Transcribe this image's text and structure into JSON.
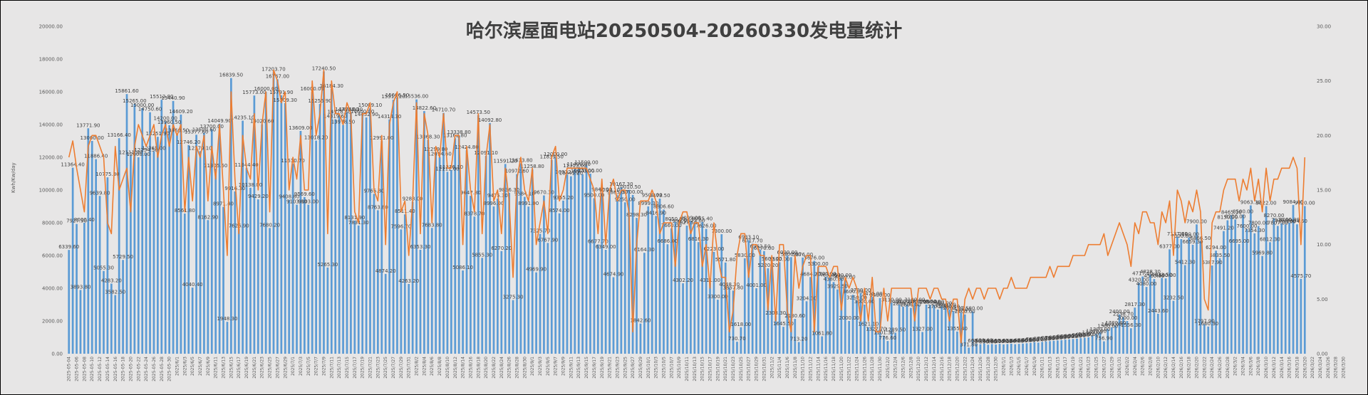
{
  "chart_data": {
    "type": "bar",
    "title": "哈尔滨屋面电站20250504-20260330发电量统计",
    "ylabel": "Kwh/Kw/day",
    "ylim": [
      0,
      20000
    ],
    "y2lim": [
      0,
      30
    ],
    "yticks": [
      "0.00",
      "2000.00",
      "4000.00",
      "6000.00",
      "8000.00",
      "10000.00",
      "12000.00",
      "14000.00",
      "16000.00",
      "18000.00",
      "20000.00"
    ],
    "y2ticks": [
      "0.00",
      "5.00",
      "10.00",
      "15.00",
      "20.00",
      "25.00",
      "30.00"
    ],
    "date_start": "2025-05-04",
    "date_end": "2026-03-30",
    "x_tick_labels": [
      "2025-05-04",
      "2025-05-06",
      "2025-05-08",
      "2025-05-10",
      "2025-05-12",
      "2025-05-14",
      "2025-05-16",
      "2025-05-18",
      "2025-05-20",
      "2025-05-22",
      "2025-05-24",
      "2025-05-26",
      "2025-05-28",
      "2025-05-30",
      "2025/6/1",
      "2025/6/3",
      "2025/6/5",
      "2025/6/7",
      "2025/6/9",
      "2025/6/11",
      "2025/6/13",
      "2025/6/15",
      "2025/6/17",
      "2025/6/19",
      "2025/6/21",
      "2025/6/23",
      "2025/6/25",
      "2025/6/27",
      "2025/6/29",
      "2025/7/1",
      "2025/7/3",
      "2025/7/5",
      "2025/7/7",
      "2025/7/9",
      "2025/7/11",
      "2025/7/13",
      "2025/7/15",
      "2025/7/17",
      "2025/7/19",
      "2025/7/21",
      "2025/7/23",
      "2025/7/25",
      "2025/7/27",
      "2025/7/29",
      "2025/7/31",
      "2025/8/2",
      "2025/8/4",
      "2025/8/6",
      "2025/8/8",
      "2025/8/10",
      "2025/8/12",
      "2025/8/14",
      "2025/8/16",
      "2025/8/18",
      "2025/8/20",
      "2025/8/22",
      "2025/8/24",
      "2025/8/26",
      "2025/8/28",
      "2025/8/30",
      "2025/9/1",
      "2025/9/3",
      "2025/9/5",
      "2025/9/7",
      "2025/9/9",
      "2025/9/11",
      "2025/9/13",
      "2025/9/15",
      "2025/9/17",
      "2025/9/19",
      "2025/9/21",
      "2025/9/23",
      "2025/9/25",
      "2025/9/27",
      "2025/9/29",
      "2025/10/1",
      "2025/10/3",
      "2025/10/5",
      "2025/10/7",
      "2025/10/9",
      "2025/10/11",
      "2025/10/13",
      "2025/10/15",
      "2025/10/17",
      "2025/10/19",
      "2025/10/21",
      "2025/10/23",
      "2025/10/25",
      "2025/10/27",
      "2025/10/29",
      "2025/10/31",
      "2025/11/2",
      "2025/11/4",
      "2025/11/6",
      "2025/11/8",
      "2025/11/10",
      "2025/11/12",
      "2025/11/14",
      "2025/11/16",
      "2025/11/18",
      "2025/11/20",
      "2025/11/22",
      "2025/11/24",
      "2025/11/26",
      "2025/11/28",
      "2025/11/30",
      "2025/12/2",
      "2025/12/4",
      "2025/12/6",
      "2025/12/8",
      "2025/12/10",
      "2025/12/12",
      "2025/12/14",
      "2025/12/16",
      "2025/12/18",
      "2025/12/20",
      "2025/12/22",
      "2025/12/24",
      "2025/12/26",
      "2025/12/28",
      "2025/12/30",
      "2026/1/1",
      "2026/1/3",
      "2026/1/5",
      "2026/1/7",
      "2026/1/9",
      "2026/1/11",
      "2026/1/13",
      "2026/1/15",
      "2026/1/17",
      "2026/1/19",
      "2026/1/21",
      "2026/1/23",
      "2026/1/25",
      "2026/1/27",
      "2026/1/29",
      "2026/1/31",
      "2026/2/2",
      "2026/2/4",
      "2026/2/6",
      "2026/2/8",
      "2026/2/10",
      "2026/2/12",
      "2026/2/14",
      "2026/2/16",
      "2026/2/18",
      "2026/2/20",
      "2026/2/22",
      "2026/2/24",
      "2026/2/26",
      "2026/2/28",
      "2026/3/2",
      "2026/3/4",
      "2026/3/6",
      "2026/3/8",
      "2026/3/10",
      "2026/3/12",
      "2026/3/14",
      "2026/3/16",
      "2026/3/18",
      "2026/3/20",
      "2026/3/22",
      "2026/3/24",
      "2026/3/26",
      "2026/3/28",
      "2026/3/30"
    ],
    "bar_color": "#5b9bd5",
    "line_color": "#ed7d31",
    "series": [
      {
        "type": "bar",
        "axis": "left",
        "values": [
          6339.6,
          11364.4,
          7927.9,
          3893.8,
          8000.4,
          13771.9,
          13000.0,
          11886.4,
          9639.8,
          5055.3,
          10775.3,
          4283.2,
          3582.5,
          13166.4,
          5729.5,
          15861.6,
          12111.0,
          15265.0,
          12000.0,
          15000.0,
          12254.5,
          14750.6,
          12365.0,
          13251.9,
          15512.8,
          14200.0,
          13960.5,
          15440.9,
          13460.5,
          14609.2,
          8561.8,
          12746.2,
          4040.4,
          13377.6,
          12379.1,
          13500.6,
          8162.9,
          13700.0,
          11305.5,
          14049.9,
          8971.4,
          1948.3,
          16839.5,
          9916.3,
          7626.9,
          14235.1,
          11344.4,
          10138.0,
          15773.0,
          9429.2,
          14020.6,
          16000.0,
          7680.2,
          17203.7,
          16767.0,
          15791.9,
          15309.3,
          9408.8,
          11610.7,
          9103.8,
          13609.0,
          9569.6,
          9103.0,
          16000.0,
          13018.2,
          15255.9,
          17240.5,
          5265.3,
          16184.3,
          14319.6,
          14578.3,
          13978.5,
          14750.0,
          14749.3,
          8131.9,
          7831.3,
          14600.0,
          14432.9,
          15009.1,
          9765.8,
          8763.8,
          12991.0,
          4874.2,
          14314.3,
          15512.2,
          15606.5,
          7596.7,
          8511.4,
          4263.2,
          9288.0,
          15536.0,
          6353.3,
          14822.6,
          13068.3,
          7683.8,
          12299.8,
          12014.6,
          14710.7,
          11111.0,
          11216.1,
          13162.8,
          13338.8,
          5086.1,
          12424.8,
          9647.8,
          8378.7,
          14573.5,
          5855.3,
          12091.1,
          14092.8,
          8996.0,
          9475.3,
          6270.2,
          11591.2,
          9836.3,
          3275.3,
          10972.6,
          11633.8,
          9584.1,
          8991.0,
          11258.8,
          4969.9,
          7325.7,
          9670.3,
          6767.9,
          11839.5,
          12000.0,
          8574.0,
          9355.2,
          10922.0,
          10841.2,
          11313.0,
          11400.0,
          10970.0,
          11500.0,
          11000.0,
          9500.0,
          6677.7,
          9842.0,
          6349.0,
          9794.1,
          4674.9,
          9685.0,
          10167.3,
          9250.0,
          10010.5,
          9700.0,
          8298.3,
          1842.6,
          6164.3,
          8999.3,
          9500.0,
          8416.9,
          9473.5,
          8806.6,
          6686.0,
          7660.0,
          8050.0,
          7909.1,
          4302.2,
          7827.5,
          8099.0,
          7927.0,
          6816.3,
          8055.4,
          7626.0,
          4311.0,
          6223.0,
          3300.0,
          7300.0,
          5571.8,
          4048.3,
          3857.8,
          730.7,
          1618.0,
          5830.0,
          6933.1,
          6717.7,
          4001.0,
          6362.5,
          6270.0,
          5220.2,
          5600.0,
          2303.3,
          5590.0,
          1645.5,
          6000.0,
          5900.0,
          2130.6,
          713.2,
          5876.0,
          3204.3,
          4684.2,
          5676.0,
          5300.0,
          1061.8,
          4700.0,
          4631.0,
          4380.0,
          3929.5,
          4600.0,
          4500.0,
          2000.0,
          3600.0,
          3250.0,
          3700.0,
          3000.0,
          1621.1,
          3470.0,
          1327.7,
          3400.0,
          1101.3,
          776.6,
          3110.0,
          1289.5,
          3000.0,
          2869.0,
          3000.0,
          2800.0,
          3100.0,
          3000.0,
          1327.0,
          3000.0,
          2980.0,
          2970.0,
          2700.0,
          2900.0,
          2800.0,
          2700.0,
          2600.0,
          1355.4,
          2500.0,
          2400.0,
          371.8,
          2580.0,
          600.0,
          580.0,
          620.0,
          550.0,
          590.0,
          560.0,
          600.0,
          570.0,
          590.0,
          610.0,
          580.0,
          600.0,
          620.0,
          640.0,
          660.0,
          700.0,
          680.0,
          720.0,
          750.0,
          770.0,
          790.0,
          810.0,
          830.0,
          860.0,
          880.0,
          900.0,
          920.0,
          950.0,
          980.0,
          1000.0,
          1100.0,
          1200.0,
          1300.0,
          756.9,
          1500.0,
          1600.0,
          1700.0,
          2400.0,
          2238.7,
          2000.0,
          1556.3,
          2817.3,
          4320.0,
          4717.0,
          4080.0,
          4828.3,
          4560.0,
          2443.6,
          4633.5,
          4600.0,
          6377.0,
          3232.5,
          7137.6,
          7000.0,
          5412.3,
          7100.0,
          6659.3,
          7900.0,
          6866.5,
          1797.9,
          1660.3,
          5387.9,
          6294.0,
          5835.5,
          7491.2,
          8150.0,
          8465.1,
          8200.0,
          6695.0,
          8500.0,
          7600.0,
          9063.3,
          7354.3,
          7800.0,
          5969.8,
          9022.0,
          6812.3,
          8270.0,
          7807.0,
          7970.0,
          7900.0,
          8000.0,
          9084.0,
          7904.6,
          4575.7,
          9020.0
        ]
      },
      {
        "type": "line",
        "axis": "right",
        "values": [
          18,
          19.5,
          17,
          15,
          13,
          19,
          20,
          20,
          19,
          18,
          12,
          11,
          19,
          15,
          16,
          17,
          13,
          19,
          21,
          20,
          19,
          20,
          21,
          18,
          20,
          21,
          19,
          21,
          20,
          21,
          13,
          18,
          14,
          19,
          18,
          20,
          14,
          19,
          16,
          21,
          15,
          9,
          24,
          16,
          11,
          20,
          17,
          16,
          22,
          15,
          21,
          24,
          13,
          26,
          25,
          23,
          24,
          15,
          18,
          16,
          20,
          15,
          15,
          25,
          20,
          22,
          26,
          11,
          25,
          22,
          22,
          21,
          23,
          22,
          13,
          12,
          22,
          22,
          23,
          15,
          14,
          20,
          10,
          21,
          23,
          24,
          13,
          14,
          9,
          14,
          23,
          11,
          22,
          20,
          12,
          19,
          18,
          22,
          17,
          17,
          20,
          20,
          10,
          19,
          15,
          13,
          22,
          11,
          18,
          21,
          14,
          15,
          11,
          17,
          14,
          7,
          16,
          18,
          15,
          14,
          17,
          10,
          12,
          14,
          11,
          18,
          19,
          14,
          15,
          17,
          17,
          17,
          17,
          17,
          17,
          16,
          15,
          11,
          16,
          10,
          15,
          16,
          14,
          15,
          15,
          13,
          2,
          10,
          14,
          14,
          14,
          15,
          14,
          11,
          12,
          12,
          12,
          8,
          12,
          13,
          13,
          11,
          12,
          12,
          8,
          10,
          6,
          12,
          9,
          7,
          7,
          2,
          4,
          9,
          11,
          11,
          7,
          10,
          10,
          9,
          9,
          4,
          9,
          3,
          10,
          10,
          4,
          2,
          9,
          6,
          8,
          9,
          9,
          2,
          8,
          8,
          8,
          7,
          8,
          8,
          4,
          7,
          6,
          7,
          6,
          3,
          6,
          3,
          7,
          2,
          2,
          6,
          3,
          6,
          6,
          6,
          6,
          6,
          6,
          3,
          6,
          6,
          6,
          5,
          6,
          6,
          5,
          5,
          3,
          5,
          5,
          1,
          5,
          6,
          5,
          6,
          6,
          5,
          6,
          6,
          6,
          5,
          6,
          6,
          7,
          6,
          6,
          6,
          6,
          7,
          7,
          7,
          7,
          7,
          8,
          7,
          8,
          8,
          8,
          8,
          9,
          9,
          9,
          9,
          10,
          10,
          10,
          10,
          11,
          9,
          10,
          11,
          12,
          11,
          10,
          8,
          12,
          11,
          13,
          13,
          12,
          12,
          10,
          13,
          12,
          14,
          9,
          15,
          14,
          12,
          14,
          13,
          15,
          13,
          5,
          4,
          12,
          13,
          13,
          15,
          16,
          16,
          16,
          14,
          16,
          15,
          17,
          14,
          16,
          13,
          17,
          14,
          16,
          16,
          17,
          17,
          17,
          18,
          17,
          10,
          18
        ]
      }
    ]
  }
}
